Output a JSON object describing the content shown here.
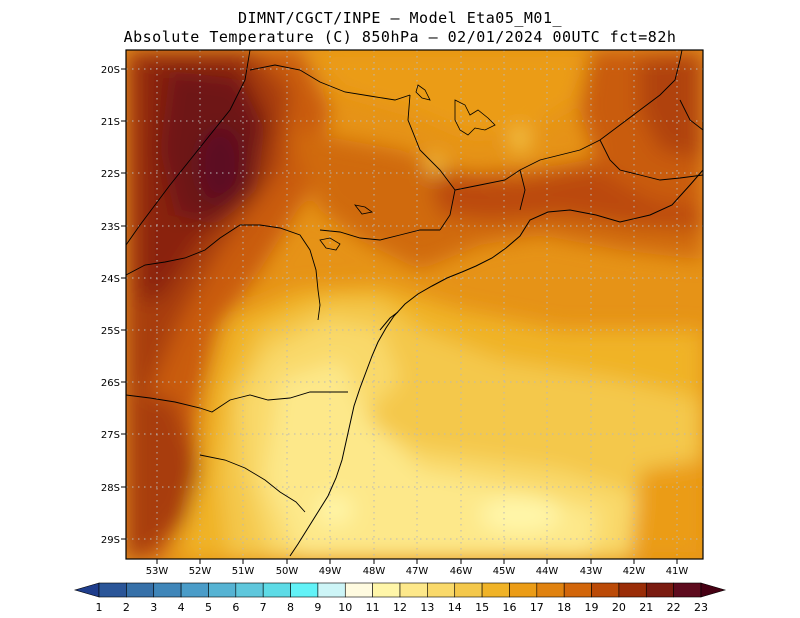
{
  "title": {
    "line1": "DIMNT/CGCT/INPE –  Model Eta05_M01_",
    "line2": "Absolute Temperature (C) 850hPa –  02/01/2024 00UTC fct=82h"
  },
  "map": {
    "lat_labels": [
      "20S",
      "21S",
      "22S",
      "23S",
      "24S",
      "25S",
      "26S",
      "27S",
      "28S",
      "29S"
    ],
    "lon_labels": [
      "53W",
      "52W",
      "51W",
      "50W",
      "49W",
      "48W",
      "47W",
      "46W",
      "45W",
      "44W",
      "43W",
      "42W",
      "41W"
    ],
    "lon_range": [
      -53.8,
      -40.4
    ],
    "lat_range": [
      -29.4,
      -19.8
    ]
  },
  "colorbar": {
    "labels": [
      "1",
      "2",
      "3",
      "4",
      "5",
      "6",
      "7",
      "8",
      "9",
      "10",
      "11",
      "12",
      "13",
      "14",
      "15",
      "16",
      "17",
      "18",
      "19",
      "20",
      "21",
      "22",
      "23"
    ],
    "colors": [
      "#1f3d8c",
      "#2a5598",
      "#3670a8",
      "#3f86b9",
      "#4a9cc8",
      "#56b3d3",
      "#5fc7dc",
      "#5ddbe6",
      "#62f2f7",
      "#cdf5f7",
      "#fffbe0",
      "#fff6a9",
      "#fde88a",
      "#f9d96a",
      "#f4c84b",
      "#f0b327",
      "#eb9c16",
      "#e0820f",
      "#d2660a",
      "#bb4a07",
      "#9a2d07",
      "#7a1b10",
      "#5e0b1e",
      "#460013"
    ]
  }
}
